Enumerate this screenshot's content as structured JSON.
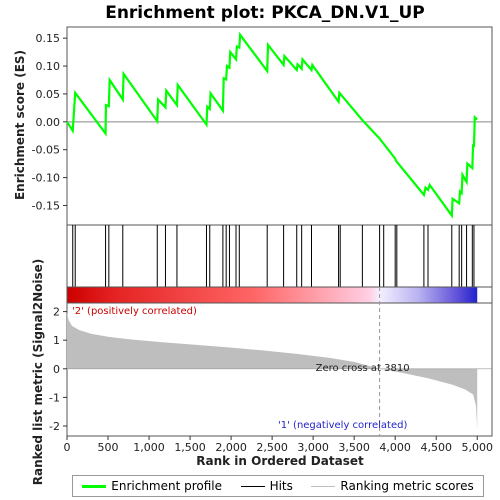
{
  "chart_data": {
    "type": "line",
    "title": "Enrichment plot: PKCA_DN.V1_UP",
    "top_panel": {
      "ylabel": "Enrichment score (ES)",
      "ylim": [
        -0.185,
        0.17
      ],
      "yticks": [
        -0.15,
        -0.1,
        -0.05,
        0.0,
        0.05,
        0.1,
        0.15
      ],
      "ytick_labels": [
        "-0.15",
        "-0.10",
        "-0.05",
        "0.00",
        "0.05",
        "0.10",
        "0.15"
      ],
      "series_name": "Enrichment profile",
      "color": "#00ff00",
      "points": [
        [
          0,
          0.0
        ],
        [
          70,
          -0.016
        ],
        [
          100,
          0.052
        ],
        [
          470,
          -0.021
        ],
        [
          475,
          0.03
        ],
        [
          510,
          0.028
        ],
        [
          520,
          0.075
        ],
        [
          680,
          0.04
        ],
        [
          690,
          0.086
        ],
        [
          1100,
          0.001
        ],
        [
          1110,
          0.04
        ],
        [
          1200,
          0.026
        ],
        [
          1210,
          0.056
        ],
        [
          1340,
          0.03
        ],
        [
          1350,
          0.066
        ],
        [
          1700,
          -0.005
        ],
        [
          1710,
          0.027
        ],
        [
          1740,
          0.023
        ],
        [
          1750,
          0.051
        ],
        [
          1900,
          0.02
        ],
        [
          1910,
          0.078
        ],
        [
          1940,
          0.076
        ],
        [
          1950,
          0.1
        ],
        [
          1980,
          0.097
        ],
        [
          1990,
          0.125
        ],
        [
          2060,
          0.112
        ],
        [
          2070,
          0.135
        ],
        [
          2100,
          0.133
        ],
        [
          2110,
          0.156
        ],
        [
          2440,
          0.091
        ],
        [
          2450,
          0.138
        ],
        [
          2640,
          0.102
        ],
        [
          2650,
          0.118
        ],
        [
          2800,
          0.093
        ],
        [
          2810,
          0.103
        ],
        [
          2860,
          0.095
        ],
        [
          2870,
          0.112
        ],
        [
          2980,
          0.093
        ],
        [
          2990,
          0.102
        ],
        [
          3310,
          0.036
        ],
        [
          3320,
          0.052
        ],
        [
          3600,
          0.003
        ],
        [
          3810,
          -0.03
        ],
        [
          4000,
          -0.066
        ],
        [
          4010,
          -0.07
        ],
        [
          4350,
          -0.131
        ],
        [
          4370,
          -0.118
        ],
        [
          4400,
          -0.122
        ],
        [
          4420,
          -0.113
        ],
        [
          4690,
          -0.168
        ],
        [
          4700,
          -0.138
        ],
        [
          4780,
          -0.146
        ],
        [
          4790,
          -0.125
        ],
        [
          4810,
          -0.128
        ],
        [
          4820,
          -0.095
        ],
        [
          4870,
          -0.108
        ],
        [
          4880,
          -0.075
        ],
        [
          4940,
          -0.083
        ],
        [
          4950,
          -0.04
        ],
        [
          4960,
          -0.045
        ],
        [
          4970,
          0.008
        ],
        [
          5000,
          0.004
        ]
      ]
    },
    "hits": {
      "name": "Hits",
      "color": "#000000",
      "positions": [
        70,
        100,
        470,
        510,
        680,
        1100,
        1200,
        1340,
        1700,
        1740,
        1900,
        1940,
        1980,
        2060,
        2100,
        2440,
        2640,
        2800,
        2860,
        2980,
        3310,
        3330,
        3600,
        3810,
        3860,
        4000,
        4020,
        4350,
        4400,
        4690,
        4780,
        4810,
        4870,
        4940,
        4960
      ]
    },
    "ranked_panel": {
      "ylabel": "Ranked list metric (Signal2Noise)",
      "ylim": [
        -2.35,
        2.3
      ],
      "yticks": [
        -2,
        -1,
        0,
        1,
        2
      ],
      "ytick_labels": [
        "-2",
        "-1",
        "0",
        "1",
        "2"
      ],
      "series_name": "Ranking metric scores",
      "fill_color": "#bebebe",
      "zero_cross": 3810,
      "zero_cross_label": "Zero cross at 3810",
      "positive_label": "'2' (positively correlated)",
      "negative_label": "'1' (negatively correlated)",
      "positive_color": "#cc0000",
      "negative_color": "#2222cc",
      "points": [
        [
          0,
          1.95
        ],
        [
          20,
          1.7
        ],
        [
          60,
          1.5
        ],
        [
          150,
          1.35
        ],
        [
          300,
          1.22
        ],
        [
          500,
          1.12
        ],
        [
          800,
          1.02
        ],
        [
          1200,
          0.92
        ],
        [
          1600,
          0.83
        ],
        [
          2000,
          0.74
        ],
        [
          2400,
          0.64
        ],
        [
          2800,
          0.52
        ],
        [
          3200,
          0.38
        ],
        [
          3500,
          0.24
        ],
        [
          3810,
          0.0
        ],
        [
          4100,
          -0.15
        ],
        [
          4400,
          -0.33
        ],
        [
          4700,
          -0.56
        ],
        [
          4850,
          -0.72
        ],
        [
          4950,
          -0.9
        ],
        [
          4985,
          -1.3
        ],
        [
          5000,
          -2.1
        ]
      ]
    },
    "xlabel": "Rank in Ordered Dataset",
    "xlim": [
      0,
      5180
    ],
    "xticks": [
      0,
      500,
      1000,
      1500,
      2000,
      2500,
      3000,
      3500,
      4000,
      4500,
      5000
    ],
    "xtick_labels": [
      "0",
      "500",
      "1,000",
      "1,500",
      "2,000",
      "2,500",
      "3,000",
      "3,500",
      "4,000",
      "4,500",
      "5,000"
    ],
    "heatmap_name": "rank-colour-bar",
    "legend": {
      "position": "bottom",
      "items": [
        {
          "label": "Enrichment profile",
          "color": "#00ff00"
        },
        {
          "label": "Hits",
          "color": "#000000"
        },
        {
          "label": "Ranking metric scores",
          "color": "#bebebe"
        }
      ]
    }
  }
}
